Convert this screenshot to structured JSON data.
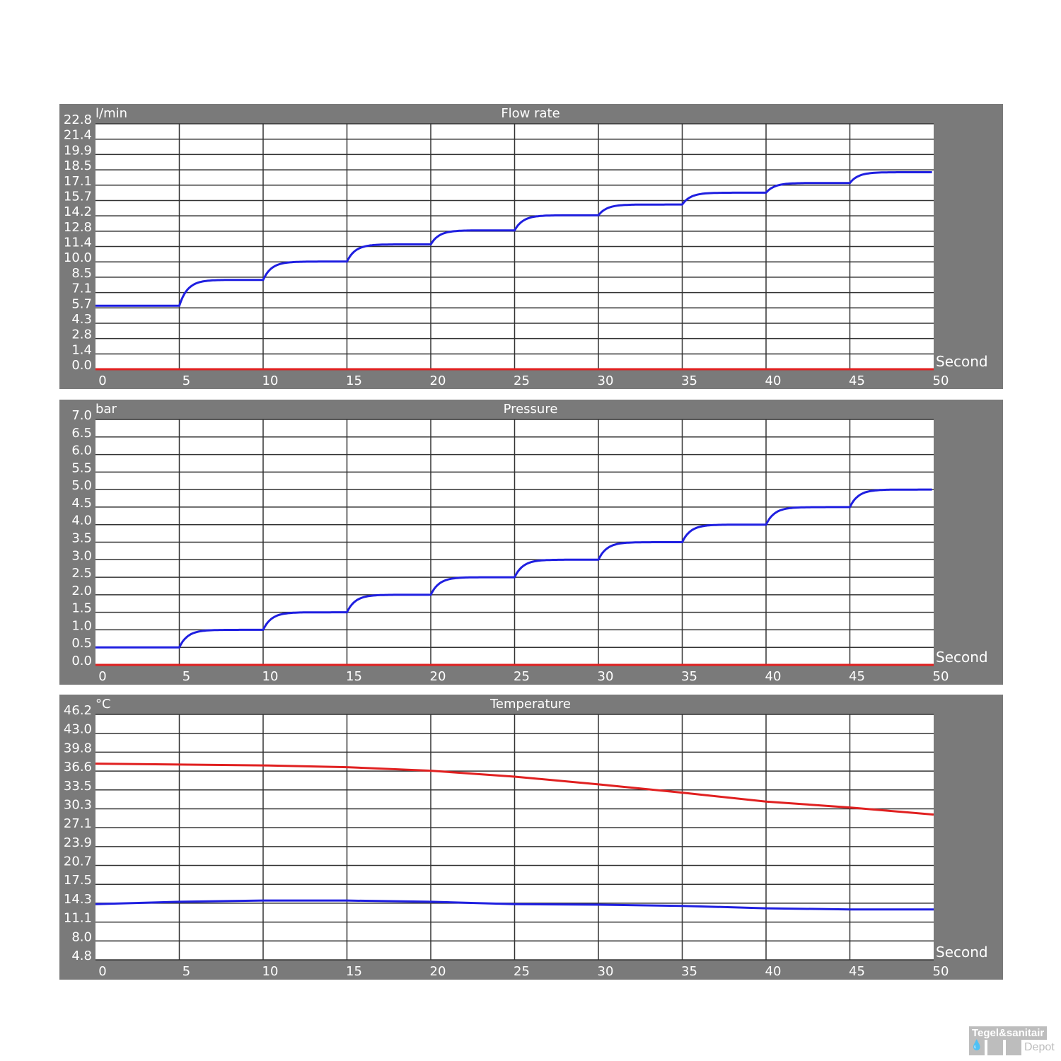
{
  "chart_data": [
    {
      "type": "line",
      "title": "Flow rate",
      "ylabel": "l/min",
      "xlabel": "Second",
      "xlim": [
        0,
        50
      ],
      "ylim": [
        0,
        22.8
      ],
      "grid": true,
      "xticks": [
        "0",
        "5",
        "10",
        "15",
        "20",
        "25",
        "30",
        "35",
        "40",
        "45",
        "50"
      ],
      "yticks": [
        "0.0",
        "1.4",
        "2.8",
        "4.3",
        "5.7",
        "7.1",
        "8.5",
        "10.0",
        "11.4",
        "12.8",
        "14.2",
        "15.7",
        "17.1",
        "18.5",
        "19.9",
        "21.4",
        "22.8"
      ],
      "series": [
        {
          "color": "#1f1fe0",
          "x": [
            0,
            5,
            10,
            15,
            20,
            25,
            30,
            35,
            40,
            45,
            50
          ],
          "y": [
            5.9,
            8.3,
            10.0,
            11.6,
            12.9,
            14.3,
            15.3,
            16.4,
            17.3,
            18.3,
            18.3
          ]
        },
        {
          "color": "#e02020",
          "x": [
            0,
            50
          ],
          "y": [
            0,
            0
          ]
        }
      ]
    },
    {
      "type": "line",
      "title": "Pressure",
      "ylabel": "bar",
      "xlabel": "Second",
      "xlim": [
        0,
        50
      ],
      "ylim": [
        0,
        7.0
      ],
      "grid": true,
      "xticks": [
        "0",
        "5",
        "10",
        "15",
        "20",
        "25",
        "30",
        "35",
        "40",
        "45",
        "50"
      ],
      "yticks": [
        "0.0",
        "0.5",
        "1.0",
        "1.5",
        "2.0",
        "2.5",
        "3.0",
        "3.5",
        "4.0",
        "4.5",
        "5.0",
        "5.5",
        "6.0",
        "6.5",
        "7.0"
      ],
      "series": [
        {
          "color": "#1f1fe0",
          "x": [
            0,
            5,
            10,
            15,
            20,
            25,
            30,
            35,
            40,
            45,
            50
          ],
          "y": [
            0.5,
            1.0,
            1.5,
            2.0,
            2.5,
            3.0,
            3.5,
            4.0,
            4.5,
            5.0,
            5.0
          ]
        },
        {
          "color": "#e02020",
          "x": [
            0,
            50
          ],
          "y": [
            0,
            0
          ]
        }
      ]
    },
    {
      "type": "line",
      "title": "Temperature",
      "ylabel": "°C",
      "xlabel": "Second",
      "xlim": [
        0,
        50
      ],
      "ylim": [
        4.8,
        46.2
      ],
      "grid": true,
      "xticks": [
        "0",
        "5",
        "10",
        "15",
        "20",
        "25",
        "30",
        "35",
        "40",
        "45",
        "50"
      ],
      "yticks": [
        "4.8",
        "8.0",
        "11.1",
        "14.3",
        "17.5",
        "20.7",
        "23.9",
        "27.1",
        "30.3",
        "33.5",
        "36.6",
        "39.8",
        "43.0",
        "46.2"
      ],
      "series": [
        {
          "color": "#e02020",
          "x": [
            0,
            10,
            15,
            20,
            25,
            30,
            35,
            40,
            45,
            50
          ],
          "y": [
            37.9,
            37.6,
            37.3,
            36.7,
            35.7,
            34.4,
            33.0,
            31.5,
            30.5,
            29.3
          ]
        },
        {
          "color": "#1f1fe0",
          "x": [
            0,
            5,
            10,
            15,
            20,
            25,
            30,
            35,
            40,
            45,
            50
          ],
          "y": [
            14.2,
            14.6,
            14.8,
            14.8,
            14.6,
            14.2,
            14.1,
            13.9,
            13.5,
            13.3,
            13.3
          ]
        }
      ]
    }
  ],
  "logo": {
    "line1": "Tegel&sanitair",
    "line2": "Depot"
  }
}
